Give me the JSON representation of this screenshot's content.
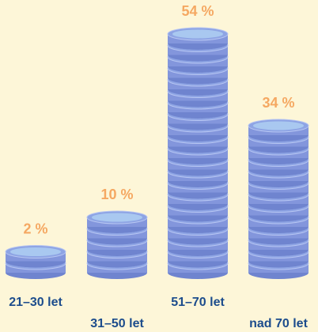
{
  "chart_data": {
    "type": "coin-stack",
    "categories": [
      "21–30 let",
      "31–50 let",
      "51–70 let",
      "nad 70 let"
    ],
    "values": [
      2,
      10,
      54,
      34
    ],
    "value_labels": [
      "2 %",
      "10 %",
      "54 %",
      "34 %"
    ],
    "color": "#8ea4e4"
  }
}
